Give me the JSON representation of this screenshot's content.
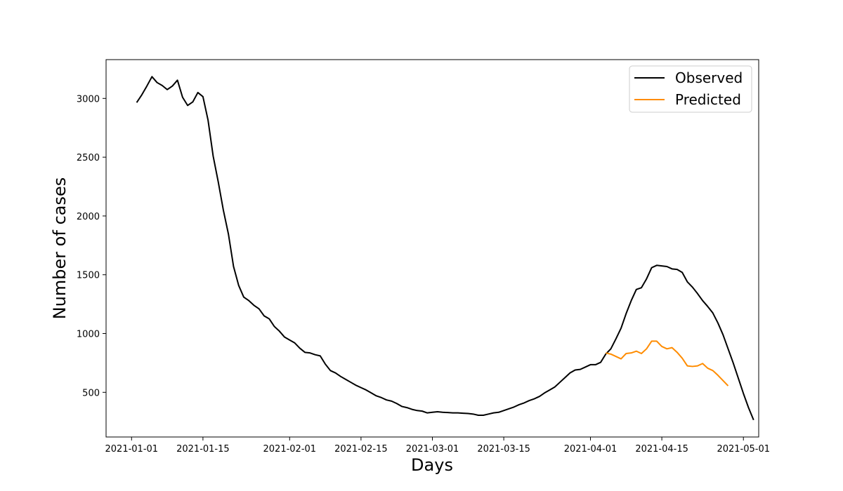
{
  "chart_data": {
    "type": "line",
    "title": "",
    "xlabel": "Days",
    "ylabel": "Number of cases",
    "x_axis": {
      "type": "date",
      "ticks": [
        "2021-01-01",
        "2021-01-15",
        "2021-02-01",
        "2021-02-15",
        "2021-03-01",
        "2021-03-15",
        "2021-04-01",
        "2021-04-15",
        "2021-05-01"
      ]
    },
    "y_axis": {
      "ticks": [
        500,
        1000,
        1500,
        2000,
        2500,
        3000
      ],
      "ylim": [
        120,
        3330
      ]
    },
    "xlim": [
      "2020-12-27",
      "2021-05-04"
    ],
    "grid": false,
    "legend": {
      "position": "top-right"
    },
    "series": [
      {
        "name": "Observed",
        "color": "#000000",
        "x_start": "2021-01-02",
        "values": [
          2965,
          3030,
          3105,
          3185,
          3135,
          3110,
          3075,
          3105,
          3155,
          3010,
          2940,
          2970,
          3050,
          3015,
          2815,
          2510,
          2290,
          2050,
          1845,
          1570,
          1410,
          1310,
          1280,
          1240,
          1210,
          1150,
          1125,
          1060,
          1020,
          970,
          945,
          920,
          875,
          840,
          835,
          820,
          810,
          740,
          685,
          665,
          635,
          610,
          585,
          560,
          540,
          520,
          495,
          470,
          455,
          435,
          425,
          405,
          380,
          370,
          355,
          345,
          340,
          325,
          330,
          335,
          330,
          328,
          325,
          325,
          322,
          320,
          315,
          305,
          305,
          315,
          325,
          330,
          345,
          360,
          375,
          395,
          410,
          430,
          445,
          465,
          495,
          520,
          545,
          585,
          625,
          665,
          690,
          695,
          715,
          735,
          735,
          755,
          825,
          870,
          955,
          1045,
          1170,
          1280,
          1375,
          1390,
          1465,
          1560,
          1580,
          1575,
          1570,
          1550,
          1545,
          1520,
          1440,
          1395,
          1340,
          1280,
          1230,
          1175,
          1090,
          990,
          870,
          750,
          620,
          490,
          370,
          265
        ]
      },
      {
        "name": "Predicted",
        "color": "#ff8c00",
        "x_start": "2021-04-04",
        "values": [
          835,
          825,
          805,
          785,
          830,
          835,
          850,
          830,
          870,
          935,
          935,
          890,
          870,
          880,
          840,
          790,
          725,
          720,
          725,
          745,
          705,
          685,
          645,
          600,
          555
        ]
      }
    ]
  }
}
